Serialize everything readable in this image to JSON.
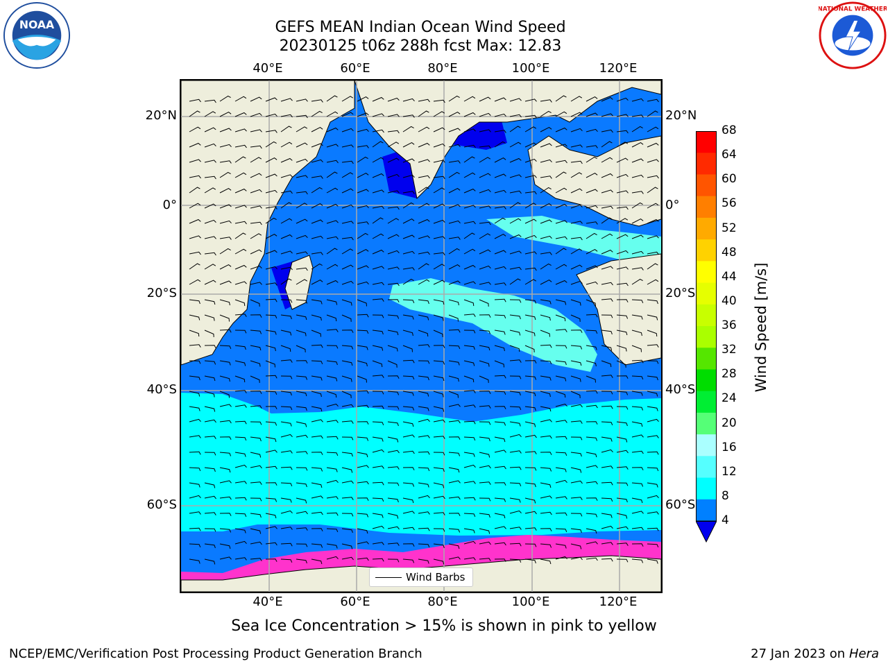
{
  "title_line1": "GEFS MEAN Indian Ocean Wind Speed",
  "title_line2": "20230125 t06z 288h fcst   Max: 12.83",
  "lon_labels": [
    "40°E",
    "60°E",
    "80°E",
    "100°E",
    "120°E"
  ],
  "lat_labels_left": [
    "20°N",
    "0°",
    "20°S",
    "40°S",
    "60°S"
  ],
  "lat_labels_right": [
    "20°N",
    "0°",
    "20°S",
    "40°S",
    "60°S"
  ],
  "legend_label": "Wind Barbs",
  "colorbar": {
    "title": "Wind Speed [m/s]",
    "ticks": [
      "68",
      "64",
      "60",
      "56",
      "52",
      "48",
      "44",
      "40",
      "36",
      "32",
      "28",
      "24",
      "20",
      "16",
      "12",
      "8",
      "4"
    ],
    "colors": [
      "#ff0000",
      "#ff2a00",
      "#ff5500",
      "#ff7f00",
      "#ffaa00",
      "#ffd200",
      "#ffff00",
      "#e6ff00",
      "#c8ff00",
      "#aaff00",
      "#55e600",
      "#00dd00",
      "#00ee33",
      "#55ff77",
      "#aaffff",
      "#55ffff",
      "#00ffff",
      "#0080ff"
    ],
    "extend_color": "#0000ee"
  },
  "sea_ice_note": "Sea Ice Concentration > 15% is shown in pink to yellow",
  "footer_left": "NCEP/EMC/Verification Post Processing Product Generation Branch",
  "footer_date": "27 Jan 2023 on",
  "footer_host": "Hera",
  "logos": {
    "left": "noaa-logo",
    "right": "nws-logo"
  },
  "colors": {
    "land": "#eeeedc",
    "ocean_low": "#0a7aff",
    "ocean_mid": "#00ffff",
    "ocean_light": "#66ffee",
    "ocean_dark": "#0000ee",
    "sea_ice": "#ff33cc",
    "grid": "#aaaaaa"
  }
}
